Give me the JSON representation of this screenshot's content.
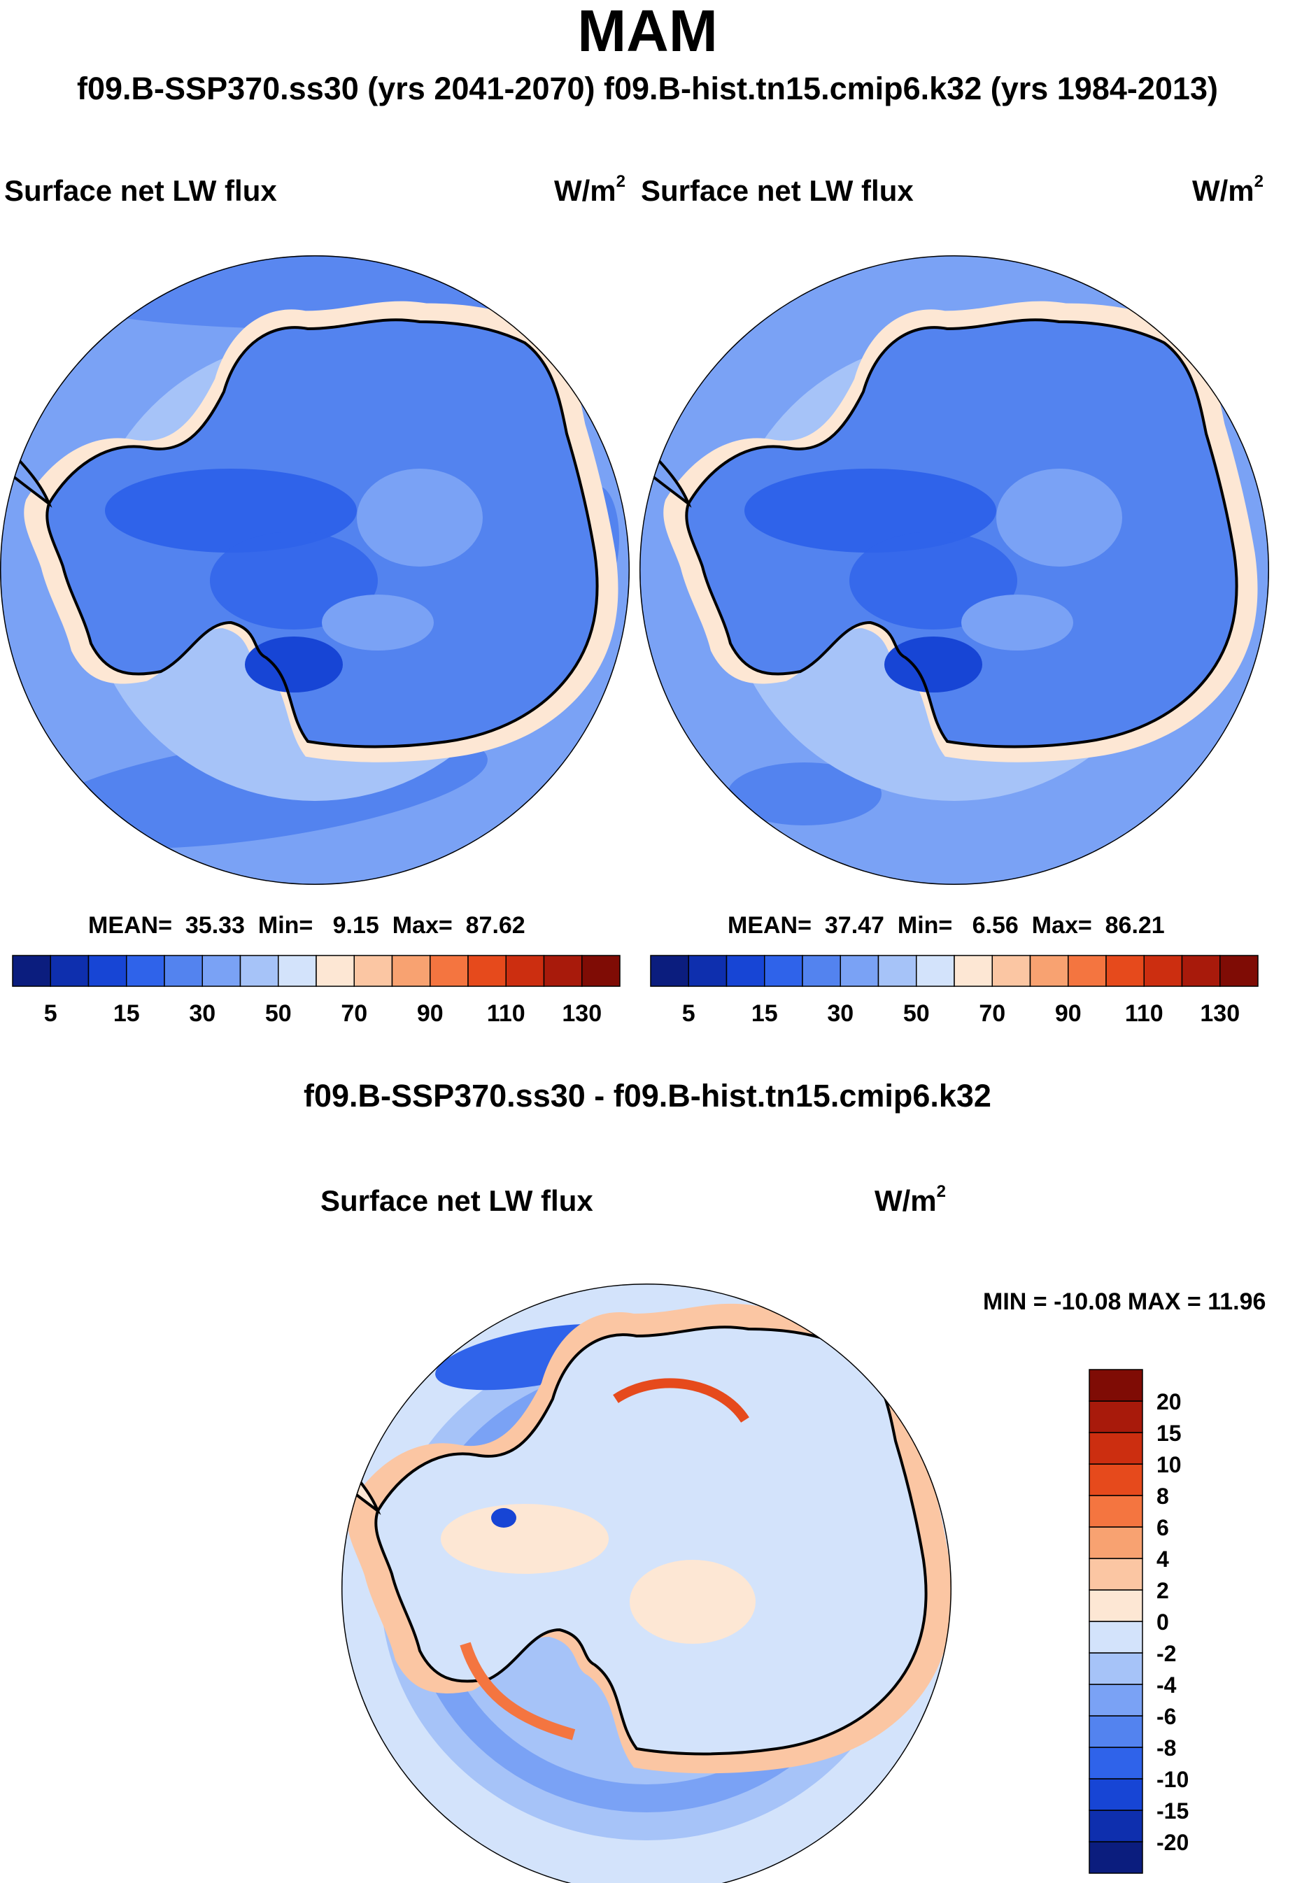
{
  "figure": {
    "season": "MAM",
    "cases_header": "f09.B-SSP370.ss30 (yrs 2041-2070)  f09.B-hist.tn15.cmip6.k32 (yrs 1984-2013)",
    "diff_header": "f09.B-SSP370.ss30 - f09.B-hist.tn15.cmip6.k32"
  },
  "panels": [
    {
      "title": "Surface net LW flux",
      "units": "W/m",
      "units_exp": "2",
      "stats": {
        "mean_label": "MEAN=",
        "mean": "35.33",
        "min_label": "Min=",
        "min": "9.15",
        "max_label": "Max=",
        "max": "87.62"
      }
    },
    {
      "title": "Surface net LW flux",
      "units": "W/m",
      "units_exp": "2",
      "stats": {
        "mean_label": "MEAN=",
        "mean": "37.47",
        "min_label": "Min=",
        "min": "6.56",
        "max_label": "Max=",
        "max": "86.21"
      }
    }
  ],
  "diff_panel": {
    "title": "Surface net LW flux",
    "units": "W/m",
    "units_exp": "2",
    "minmax": "MIN = -10.08 MAX =  11.96"
  },
  "colorbar_main": {
    "colors": [
      "#0b1d7e",
      "#0e2fae",
      "#1745d5",
      "#2f63ea",
      "#5383ef",
      "#7aa2f5",
      "#a6c3f8",
      "#d3e3fb",
      "#fde7d4",
      "#fbc6a3",
      "#f8a271",
      "#f47540",
      "#e64a1c",
      "#cc2e10",
      "#a81a0b",
      "#7f0c05"
    ],
    "tick_labels": [
      "5",
      "15",
      "30",
      "50",
      "70",
      "90",
      "110",
      "130"
    ]
  },
  "colorbar_diff": {
    "colors": [
      "#0b1d7e",
      "#0e2fae",
      "#1745d5",
      "#2f63ea",
      "#5383ef",
      "#7aa2f5",
      "#a6c3f8",
      "#d3e3fb",
      "#fde7d4",
      "#fbc6a3",
      "#f8a271",
      "#f47540",
      "#e64a1c",
      "#cc2e10",
      "#a81a0b",
      "#7f0c05"
    ],
    "tick_labels": [
      "-20",
      "-15",
      "-10",
      "-8",
      "-6",
      "-4",
      "-2",
      "0",
      "2",
      "4",
      "6",
      "8",
      "10",
      "15",
      "20"
    ]
  }
}
